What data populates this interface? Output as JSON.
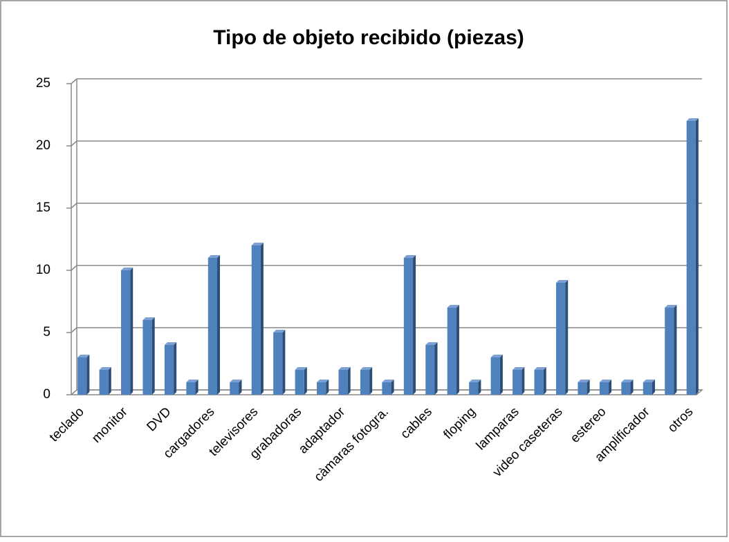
{
  "chart_data": {
    "type": "bar",
    "title": "Tipo de objeto recibido (piezas)",
    "categories": [
      "teclado",
      null,
      "monitor",
      null,
      "DVD",
      null,
      "cargadores",
      null,
      "televisores",
      null,
      "grabadoras",
      null,
      "adaptador",
      null,
      "càmaras fotogra.",
      null,
      "cables",
      null,
      "floping",
      null,
      "lamparas",
      null,
      "video caseteras",
      null,
      "estereo",
      null,
      "amplificador",
      null,
      "otros"
    ],
    "values": [
      3,
      2,
      10,
      6,
      4,
      1,
      11,
      1,
      12,
      5,
      2,
      1,
      2,
      2,
      1,
      11,
      4,
      7,
      1,
      3,
      2,
      2,
      9,
      1,
      1,
      1,
      1,
      7,
      22
    ],
    "color": "#4f81bd",
    "ylim": [
      0,
      25
    ],
    "yticks": [
      0,
      5,
      10,
      15,
      20,
      25
    ],
    "grid": true
  }
}
